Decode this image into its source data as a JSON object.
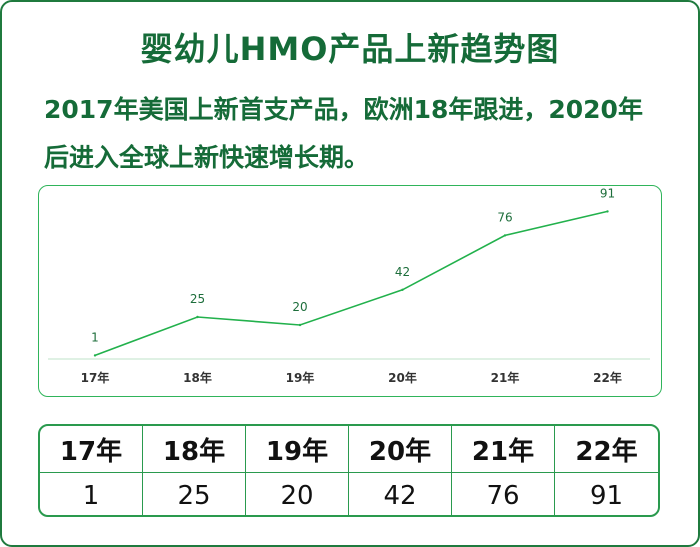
{
  "title": "婴幼儿HMO产品上新趋势图",
  "subtitle": "2017年美国上新首支产品，欧洲18年跟进，2020年后进入全球上新快速增长期。",
  "colors": {
    "accent": "#1f7a3e",
    "line": "#22b14c",
    "text_green": "#156b38"
  },
  "chart_data": {
    "type": "line",
    "categories": [
      "17年",
      "18年",
      "19年",
      "20年",
      "21年",
      "22年"
    ],
    "values": [
      1,
      25,
      20,
      42,
      76,
      91
    ],
    "data_labels": [
      "1",
      "25",
      "20",
      "42",
      "76",
      "91"
    ],
    "ylim": [
      0,
      95
    ],
    "grid": false,
    "legend": "none"
  },
  "table": {
    "headers": [
      "17年",
      "18年",
      "19年",
      "20年",
      "21年",
      "22年"
    ],
    "values": [
      "1",
      "25",
      "20",
      "42",
      "76",
      "91"
    ]
  }
}
